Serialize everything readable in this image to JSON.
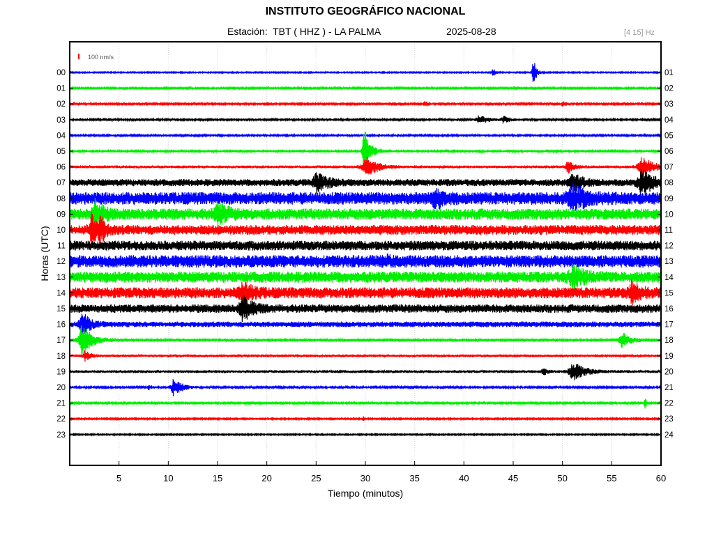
{
  "header": {
    "title": "INSTITUTO GEOGRÁFICO NACIONAL",
    "station_text": "Estación:  TBT ( HHZ ) - LA PALMA",
    "date": "2025-08-28",
    "band": "[4 15] Hz"
  },
  "chart_data": {
    "type": "line",
    "title": "INSTITUTO GEOGRÁFICO NACIONAL",
    "xlabel": "Tiempo (minutos)",
    "ylabel": "Horas (UTC)",
    "xlim": [
      0,
      60
    ],
    "x_ticks": [
      "5",
      "10",
      "15",
      "20",
      "25",
      "30",
      "35",
      "40",
      "45",
      "50",
      "55",
      "60"
    ],
    "y_ticks_left": [
      "00",
      "01",
      "02",
      "03",
      "04",
      "05",
      "06",
      "07",
      "08",
      "09",
      "10",
      "11",
      "12",
      "13",
      "14",
      "15",
      "16",
      "17",
      "18",
      "19",
      "20",
      "21",
      "22",
      "23"
    ],
    "y_ticks_right": [
      "01",
      "02",
      "03",
      "04",
      "05",
      "06",
      "07",
      "08",
      "09",
      "10",
      "11",
      "12",
      "13",
      "14",
      "15",
      "16",
      "17",
      "18",
      "19",
      "20",
      "21",
      "22",
      "23",
      "24"
    ],
    "scale_label": "100 nm/s",
    "grid": true,
    "trace_colors": [
      "#0000ff",
      "#00ee00",
      "#ff0000",
      "#000000"
    ],
    "traces": [
      {
        "hour": "00",
        "noise": 0.8,
        "events": [
          {
            "minute": 42.9,
            "amp": 6,
            "dur": 0.4
          },
          {
            "minute": 47,
            "amp": 22,
            "dur": 0.4
          }
        ]
      },
      {
        "hour": "01",
        "noise": 1.2,
        "events": []
      },
      {
        "hour": "02",
        "noise": 1.2,
        "events": [
          {
            "minute": 36,
            "amp": 4,
            "dur": 0.6
          },
          {
            "minute": 50,
            "amp": 4,
            "dur": 0.5
          }
        ]
      },
      {
        "hour": "03",
        "noise": 1.3,
        "events": [
          {
            "minute": 41.5,
            "amp": 6,
            "dur": 1.2
          },
          {
            "minute": 44,
            "amp": 5,
            "dur": 0.8
          }
        ]
      },
      {
        "hour": "04",
        "noise": 1.4,
        "events": []
      },
      {
        "hour": "05",
        "noise": 1.4,
        "events": [
          {
            "minute": 29.8,
            "amp": 24,
            "dur": 0.4
          },
          {
            "minute": 30,
            "amp": 16,
            "dur": 1.0
          }
        ]
      },
      {
        "hour": "06",
        "noise": 2.0,
        "events": [
          {
            "minute": 30,
            "amp": 14,
            "dur": 1.5
          },
          {
            "minute": 50.5,
            "amp": 9,
            "dur": 0.8
          },
          {
            "minute": 58,
            "amp": 14,
            "dur": 1.5
          }
        ]
      },
      {
        "hour": "07",
        "noise": 5.0,
        "events": [
          {
            "minute": 25,
            "amp": 12,
            "dur": 1.5
          },
          {
            "minute": 51,
            "amp": 12,
            "dur": 1.2
          },
          {
            "minute": 58,
            "amp": 16,
            "dur": 1.5
          }
        ]
      },
      {
        "hour": "08",
        "noise": 9.0,
        "events": [
          {
            "minute": 37,
            "amp": 14,
            "dur": 1.0
          },
          {
            "minute": 51,
            "amp": 14,
            "dur": 2.0
          }
        ]
      },
      {
        "hour": "09",
        "noise": 8.0,
        "events": [
          {
            "minute": 2.5,
            "amp": 18,
            "dur": 1.0
          },
          {
            "minute": 15,
            "amp": 14,
            "dur": 1.2
          }
        ]
      },
      {
        "hour": "10",
        "noise": 7.0,
        "events": [
          {
            "minute": 2.2,
            "amp": 22,
            "dur": 0.9
          },
          {
            "minute": 3,
            "amp": 16,
            "dur": 0.6
          }
        ]
      },
      {
        "hour": "11",
        "noise": 7.0,
        "events": []
      },
      {
        "hour": "12",
        "noise": 9.0,
        "events": [
          {
            "minute": 32,
            "amp": 4,
            "dur": 0.6
          }
        ]
      },
      {
        "hour": "13",
        "noise": 8.0,
        "events": [
          {
            "minute": 51,
            "amp": 12,
            "dur": 1.5
          }
        ]
      },
      {
        "hour": "14",
        "noise": 8.0,
        "events": [
          {
            "minute": 17.5,
            "amp": 12,
            "dur": 1.2
          },
          {
            "minute": 57,
            "amp": 12,
            "dur": 1.0
          }
        ]
      },
      {
        "hour": "15",
        "noise": 6.0,
        "events": [
          {
            "minute": 17.5,
            "amp": 16,
            "dur": 1.2
          }
        ]
      },
      {
        "hour": "16",
        "noise": 4.0,
        "events": [
          {
            "minute": 1.2,
            "amp": 16,
            "dur": 1.0
          }
        ]
      },
      {
        "hour": "17",
        "noise": 2.5,
        "events": [
          {
            "minute": 1.2,
            "amp": 22,
            "dur": 1.2
          },
          {
            "minute": 56,
            "amp": 10,
            "dur": 1.0
          }
        ]
      },
      {
        "hour": "18",
        "noise": 2.0,
        "events": [
          {
            "minute": 1.5,
            "amp": 8,
            "dur": 0.6
          }
        ]
      },
      {
        "hour": "19",
        "noise": 2.0,
        "events": [
          {
            "minute": 51,
            "amp": 14,
            "dur": 1.5
          },
          {
            "minute": 48,
            "amp": 5,
            "dur": 0.5
          }
        ]
      },
      {
        "hour": "20",
        "noise": 1.2,
        "events": [
          {
            "minute": 10.5,
            "amp": 12,
            "dur": 1.2
          },
          {
            "minute": 8,
            "amp": 4,
            "dur": 0.4
          }
        ]
      },
      {
        "hour": "21",
        "noise": 1.2,
        "events": [
          {
            "minute": 58.3,
            "amp": 9,
            "dur": 0.3
          },
          {
            "minute": 41,
            "amp": 3,
            "dur": 0.3
          }
        ]
      },
      {
        "hour": "22",
        "noise": 1.0,
        "events": [
          {
            "minute": 29.8,
            "amp": 3,
            "dur": 0.3
          }
        ]
      },
      {
        "hour": "23",
        "noise": 0.9,
        "events": []
      }
    ]
  }
}
